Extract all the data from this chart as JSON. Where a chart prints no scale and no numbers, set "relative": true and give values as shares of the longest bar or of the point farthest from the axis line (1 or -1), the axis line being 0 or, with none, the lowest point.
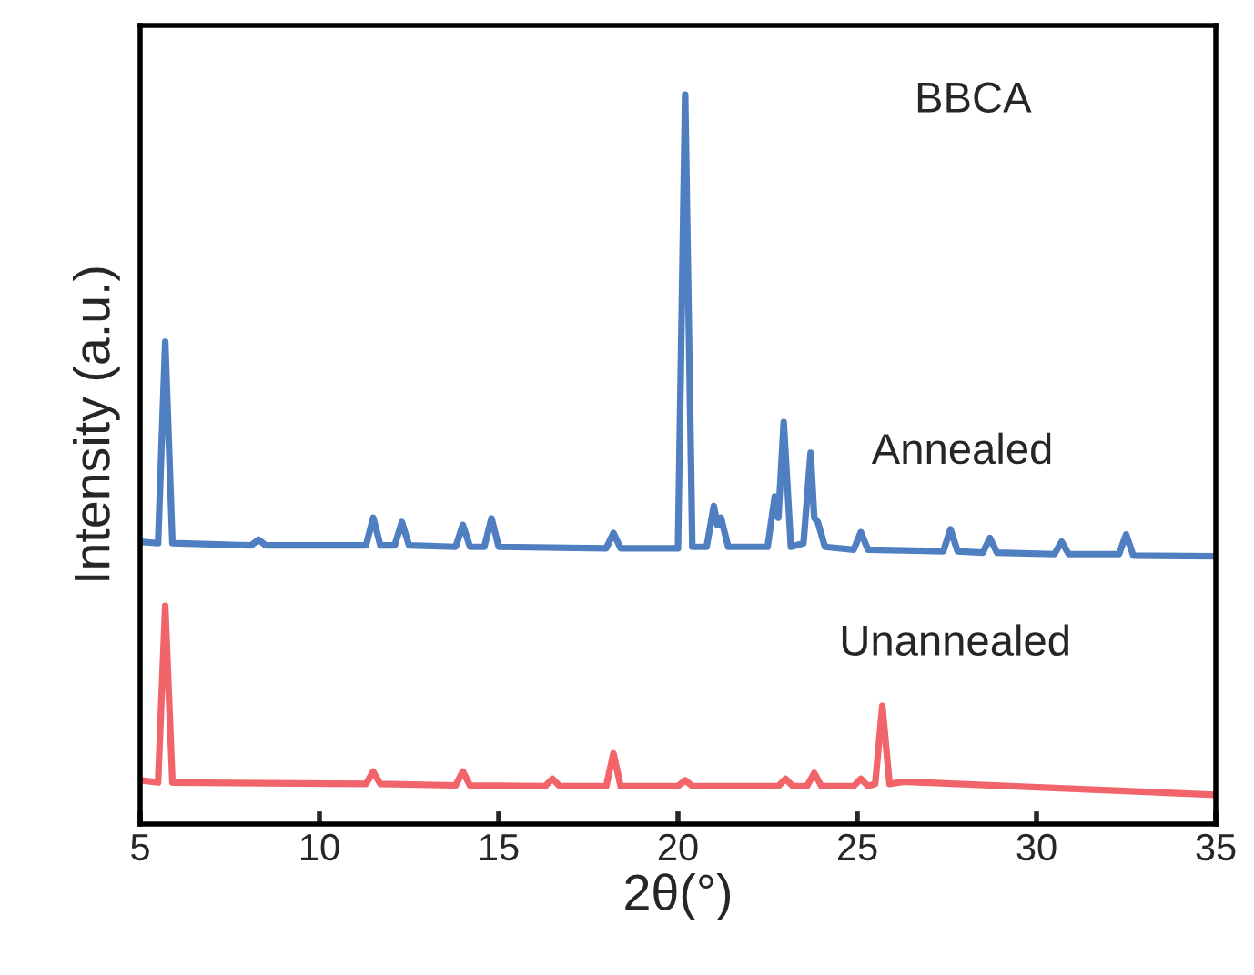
{
  "chart_data": {
    "type": "line",
    "relative": true,
    "xlabel": "2θ(°)",
    "ylabel": "Intensity (a.u.)",
    "xlim": [
      5,
      35
    ],
    "xticks": [
      5,
      10,
      15,
      20,
      25,
      30,
      35
    ],
    "annotations": [
      "BBCA"
    ],
    "legend": false,
    "grid": false,
    "marker": "none",
    "line_style": "solid",
    "series": [
      {
        "name": "Annealed",
        "color": "#4f7fc1",
        "x": [
          5.0,
          5.5,
          5.7,
          5.9,
          8.1,
          8.3,
          8.5,
          11.3,
          11.5,
          11.7,
          12.1,
          12.3,
          12.5,
          13.8,
          14.0,
          14.2,
          14.6,
          14.8,
          15.0,
          18.0,
          18.2,
          18.4,
          20.0,
          20.2,
          20.4,
          20.8,
          21.0,
          21.1,
          21.2,
          21.4,
          22.5,
          22.7,
          22.8,
          22.95,
          23.15,
          23.5,
          23.7,
          23.8,
          23.9,
          24.1,
          24.9,
          25.1,
          25.3,
          27.4,
          27.6,
          27.8,
          28.5,
          28.7,
          28.9,
          30.5,
          30.7,
          30.9,
          32.3,
          32.5,
          32.7,
          35.0
        ],
        "values": [
          0.387,
          0.385,
          0.661,
          0.385,
          0.382,
          0.39,
          0.382,
          0.382,
          0.42,
          0.382,
          0.382,
          0.414,
          0.382,
          0.38,
          0.41,
          0.38,
          0.38,
          0.419,
          0.38,
          0.378,
          0.399,
          0.378,
          0.378,
          1.0,
          0.38,
          0.38,
          0.436,
          0.41,
          0.42,
          0.38,
          0.38,
          0.449,
          0.42,
          0.551,
          0.38,
          0.385,
          0.509,
          0.42,
          0.414,
          0.38,
          0.376,
          0.4,
          0.376,
          0.374,
          0.404,
          0.374,
          0.372,
          0.392,
          0.372,
          0.37,
          0.387,
          0.37,
          0.37,
          0.397,
          0.368,
          0.367
        ]
      },
      {
        "name": "Unannealed",
        "color": "#f0646a",
        "x": [
          5.0,
          5.5,
          5.7,
          5.9,
          11.3,
          11.5,
          11.7,
          13.8,
          14.0,
          14.2,
          16.3,
          16.5,
          16.7,
          18.0,
          18.2,
          18.4,
          20.0,
          20.2,
          20.4,
          22.8,
          23.0,
          23.2,
          23.6,
          23.8,
          24.0,
          24.9,
          25.1,
          25.3,
          25.5,
          25.7,
          25.9,
          26.3,
          35.0
        ],
        "values": [
          0.06,
          0.057,
          0.299,
          0.057,
          0.055,
          0.072,
          0.055,
          0.053,
          0.072,
          0.053,
          0.052,
          0.062,
          0.052,
          0.052,
          0.097,
          0.052,
          0.052,
          0.06,
          0.052,
          0.052,
          0.062,
          0.052,
          0.052,
          0.07,
          0.052,
          0.052,
          0.062,
          0.052,
          0.055,
          0.162,
          0.055,
          0.058,
          0.04
        ]
      }
    ]
  }
}
